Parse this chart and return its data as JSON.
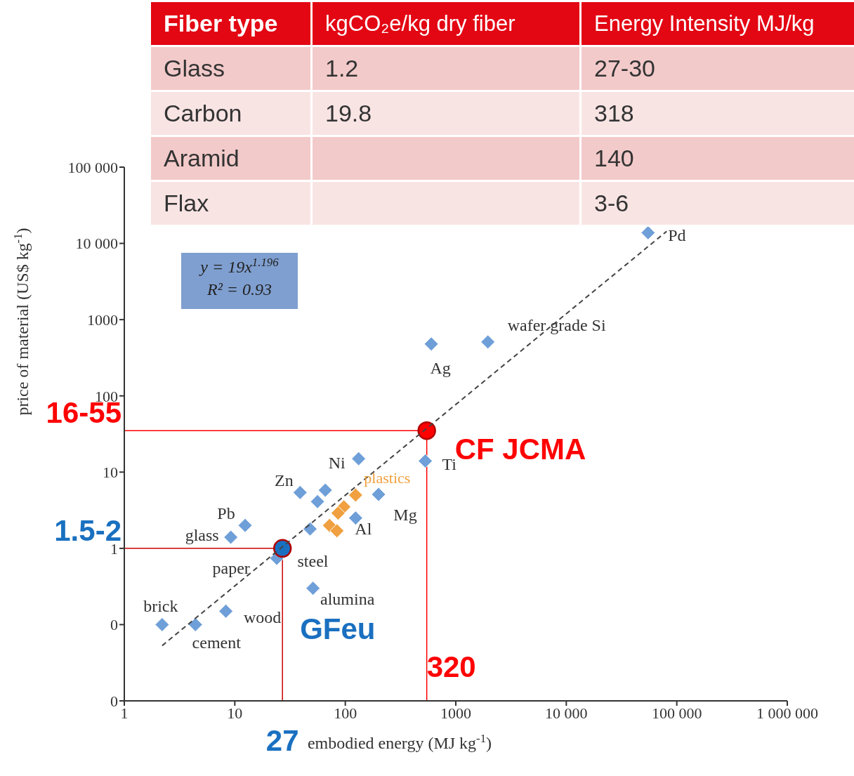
{
  "chart_data": [
    {
      "type": "scatter",
      "xlabel": "embodied energy (MJ kg$^{-1}$)",
      "ylabel": "price of material (US$ kg$^{-1}$)",
      "log": "xy",
      "xlim": [
        1,
        1000000
      ],
      "xticks": [
        1,
        10,
        100,
        1000,
        {
          "value": 10000,
          "label": "10 000"
        },
        {
          "value": 100000,
          "label": "100 000"
        },
        {
          "value": 1000000,
          "label": "1 000 000"
        }
      ],
      "ylim": [
        0.01,
        100000
      ],
      "yticks": [
        {
          "value": 0.01,
          "label": "0"
        },
        {
          "value": 0.1,
          "label": "0"
        },
        1,
        10,
        100,
        1000,
        {
          "value": 10000,
          "label": "10 000"
        },
        {
          "value": 100000,
          "label": "100 000"
        }
      ],
      "grid": false,
      "series": [
        {
          "color": "#6f9fd8",
          "marker": "diamond",
          "x": [
            2.2,
            4.4,
            8.3,
            9.2,
            12.4,
            24,
            51,
            48,
            39,
            56,
            66,
            132,
            124,
            200,
            530,
            600,
            1950,
            55000
          ],
          "values": [
            0.1,
            0.1,
            0.15,
            1.4,
            2.0,
            0.74,
            0.3,
            1.8,
            5.4,
            4.1,
            5.8,
            15,
            2.5,
            5.1,
            14,
            480,
            510,
            13800
          ]
        },
        {
          "name": "plastics",
          "color": "#f0a040",
          "marker": "diamond",
          "x": [
            124,
            97,
            86,
            72,
            84
          ],
          "values": [
            5.0,
            3.5,
            2.9,
            2.0,
            1.7
          ]
        },
        {
          "name": "GFeu",
          "color": "#1a70c0",
          "marker": "circle",
          "x": [
            27
          ],
          "values": [
            1
          ]
        },
        {
          "name": "CF JCMA",
          "color": "#ff0000",
          "marker": "circle",
          "x": [
            546
          ],
          "values": [
            35
          ]
        },
        {
          "type": "line",
          "color": "#444444",
          "marker": "none",
          "line_style": "dashed",
          "x": [
            2.2,
            81000
          ],
          "values": [
            0.053,
            14400
          ]
        }
      ],
      "ref_lines": [
        {
          "axis": "y",
          "value": 35,
          "color": "#ff0000"
        },
        {
          "axis": "x",
          "value": 546,
          "color": "#ff0000"
        },
        {
          "axis": "y",
          "value": 1,
          "color": "#cc0000"
        },
        {
          "axis": "x",
          "value": 27,
          "color": "#cc0000"
        }
      ],
      "annotations": [
        "y = 19x$^{1.196}$",
        "R² = 0.93",
        {
          "text": "16-55",
          "x": 1,
          "y": 35
        },
        {
          "text": "320",
          "x": 546,
          "y": 0.01
        },
        {
          "text": "1.5-2",
          "x": 1,
          "y": 1
        },
        {
          "text": "27",
          "x": 27,
          "y": 0.01
        },
        {
          "text": "Pd",
          "x": 55000,
          "y": 13800
        },
        {
          "text": "wafer grade Si",
          "x": 1950,
          "y": 510
        },
        {
          "text": "Ag",
          "x": 600,
          "y": 480
        },
        {
          "text": "Ti",
          "x": 530,
          "y": 14
        },
        {
          "text": "Ni",
          "x": 132,
          "y": 15
        },
        {
          "text": "Zn",
          "x": 39,
          "y": 5.4
        },
        {
          "text": "Mg",
          "x": 200,
          "y": 5.1
        },
        {
          "text": "Al",
          "x": 124,
          "y": 2.5
        },
        {
          "text": "Pb",
          "x": 12.4,
          "y": 2.0
        },
        {
          "text": "glass",
          "x": 9.2,
          "y": 1.4
        },
        {
          "text": "paper",
          "x": 24,
          "y": 0.74
        },
        {
          "text": "steel",
          "x": 48,
          "y": 1.8
        },
        {
          "text": "alumina",
          "x": 51,
          "y": 0.3
        },
        {
          "text": "brick",
          "x": 2.2,
          "y": 0.1
        },
        {
          "text": "wood",
          "x": 8.3,
          "y": 0.15
        },
        {
          "text": "cement",
          "x": 4.4,
          "y": 0.1
        }
      ]
    },
    {
      "type": "other",
      "categories": [
        "Fiber type",
        "kgCO₂e/kg dry fiber",
        "Energy Intensity MJ/kg"
      ],
      "cell_labels": [
        [
          "Glass",
          "1.2",
          "27-30"
        ],
        [
          "Carbon",
          "19.8",
          "318"
        ],
        [
          "Aramid",
          null,
          "140"
        ],
        [
          "Flax",
          null,
          "3-6"
        ]
      ]
    }
  ]
}
